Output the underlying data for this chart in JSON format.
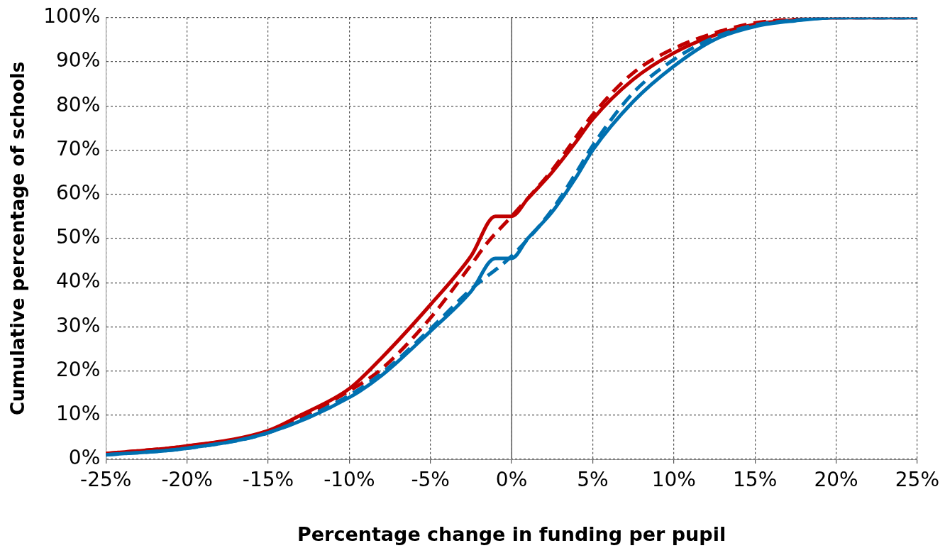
{
  "chart_data": {
    "type": "line",
    "xlabel": "Percentage change in funding per pupil",
    "ylabel": "Cumulative percentage of schools",
    "xlim": [
      -25,
      25
    ],
    "xticks": [
      {
        "value": -25,
        "label": "-25%"
      },
      {
        "value": -20,
        "label": "-20%"
      },
      {
        "value": -15,
        "label": "-15%"
      },
      {
        "value": -10,
        "label": "-10%"
      },
      {
        "value": -5,
        "label": "-5%"
      },
      {
        "value": 0,
        "label": "0%"
      },
      {
        "value": 5,
        "label": "5%"
      },
      {
        "value": 10,
        "label": "10%"
      },
      {
        "value": 15,
        "label": "15%"
      },
      {
        "value": 20,
        "label": "20%"
      },
      {
        "value": 25,
        "label": "25%"
      }
    ],
    "ylim": [
      0,
      100
    ],
    "yticks": [
      {
        "value": 0,
        "label": "0%"
      },
      {
        "value": 10,
        "label": "10%"
      },
      {
        "value": 20,
        "label": "20%"
      },
      {
        "value": 30,
        "label": "30%"
      },
      {
        "value": 40,
        "label": "40%"
      },
      {
        "value": 50,
        "label": "50%"
      },
      {
        "value": 60,
        "label": "60%"
      },
      {
        "value": 70,
        "label": "70%"
      },
      {
        "value": 80,
        "label": "80%"
      },
      {
        "value": 90,
        "label": "90%"
      },
      {
        "value": 100,
        "label": "100%"
      }
    ],
    "grid": true,
    "legend": false,
    "marker": "none",
    "ref_lines": [
      {
        "axis": "x",
        "value": 0,
        "color": "#808080",
        "line_style": "solid"
      }
    ],
    "series": [
      {
        "color": "#c00000",
        "line_style": "solid",
        "x": [
          -25,
          -20,
          -15,
          -13,
          -10,
          -8,
          -5,
          -2.5,
          -1,
          0,
          1,
          2.5,
          4,
          5,
          7.5,
          10,
          12.5,
          15,
          17.5,
          20,
          25
        ],
        "values": [
          1.3,
          3,
          6.5,
          10,
          16,
          23,
          35,
          46,
          55,
          55,
          59,
          65,
          72,
          77,
          86,
          92,
          96,
          98.5,
          99.5,
          100,
          100
        ]
      },
      {
        "color": "#c00000",
        "line_style": "dashed",
        "x": [
          -25,
          -20,
          -15,
          -10,
          -8,
          -5,
          -2.5,
          -1.5,
          0,
          2.5,
          5,
          7.5,
          10,
          12.5,
          15,
          17.5,
          20,
          25
        ],
        "values": [
          1.3,
          3,
          6.3,
          15.5,
          20.5,
          32,
          44,
          49,
          55,
          65.5,
          78,
          87.5,
          93,
          96.5,
          98.8,
          99.6,
          100,
          100
        ]
      },
      {
        "color": "#0070b0",
        "line_style": "solid",
        "x": [
          -25,
          -20,
          -15,
          -10,
          -8,
          -5,
          -2.5,
          -1,
          0,
          1,
          2.5,
          4,
          5,
          7.5,
          10,
          12.5,
          15,
          17.5,
          20,
          25
        ],
        "values": [
          1,
          2.5,
          6,
          14,
          19,
          29,
          38,
          45.5,
          45.5,
          50,
          56,
          64,
          70,
          81,
          89,
          95,
          98,
          99.3,
          100,
          100
        ]
      },
      {
        "color": "#0070b0",
        "line_style": "dashed",
        "x": [
          -25,
          -20,
          -15,
          -10,
          -8,
          -5,
          -2.5,
          0,
          2.5,
          4,
          5,
          7.5,
          10,
          12.5,
          15,
          17.5,
          20,
          25
        ],
        "values": [
          1,
          2.5,
          6,
          14.5,
          19.5,
          29.5,
          38.5,
          46,
          56.5,
          65,
          71,
          83,
          90.5,
          95.5,
          98.3,
          99.4,
          100,
          100
        ]
      }
    ]
  }
}
